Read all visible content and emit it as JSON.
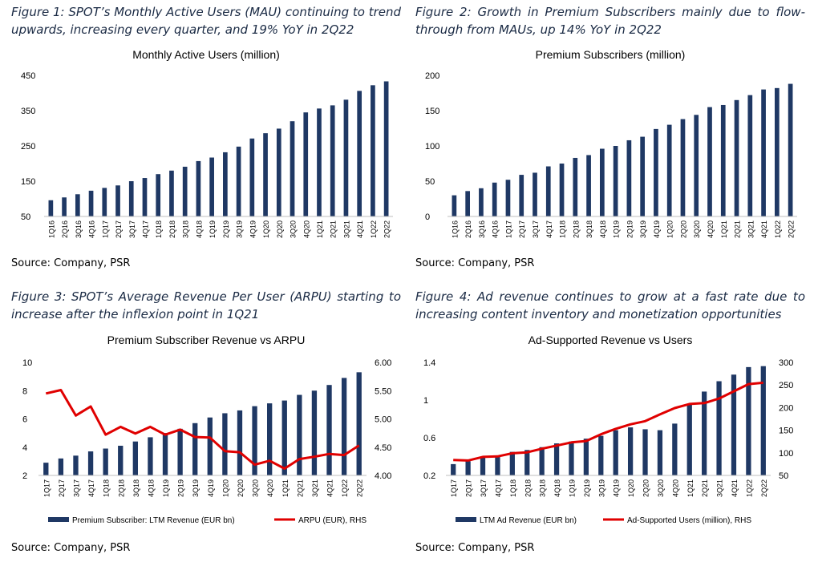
{
  "figures": [
    {
      "caption": "Figure 1: SPOT’s Monthly Active Users (MAU) continuing to trend upwards, increasing every quarter, and 19% YoY in 2Q22",
      "source": "Source: Company, PSR"
    },
    {
      "caption": "Figure 2: Growth in Premium Subscribers mainly due to flow-through from MAUs, up 14% YoY in 2Q22",
      "source": "Source: Company, PSR"
    },
    {
      "caption": "Figure 3: SPOT’s Average Revenue Per User (ARPU) starting to increase after the inflexion point in 1Q21",
      "source": "Source: Company, PSR"
    },
    {
      "caption": "Figure 4: Ad revenue continues to grow at a fast rate due to increasing content inventory and monetization opportunities",
      "source": "Source: Company, PSR"
    }
  ],
  "colors": {
    "bar": "#1f3864",
    "line": "#e00000",
    "caption": "#1a2a44"
  },
  "chart_data": [
    {
      "type": "bar",
      "title": "Monthly Active Users (million)",
      "categories": [
        "1Q16",
        "2Q16",
        "3Q16",
        "4Q16",
        "1Q17",
        "2Q17",
        "3Q17",
        "4Q17",
        "1Q18",
        "2Q18",
        "3Q18",
        "4Q18",
        "1Q19",
        "2Q19",
        "3Q19",
        "4Q19",
        "1Q20",
        "2Q20",
        "3Q20",
        "4Q20",
        "1Q21",
        "2Q21",
        "3Q21",
        "4Q21",
        "1Q22",
        "2Q22"
      ],
      "values": [
        96,
        104,
        113,
        123,
        131,
        138,
        150,
        159,
        170,
        180,
        191,
        207,
        217,
        232,
        248,
        271,
        286,
        299,
        320,
        345,
        356,
        365,
        381,
        406,
        422,
        433
      ],
      "ylim": [
        50,
        450
      ],
      "yticks": [
        50,
        150,
        250,
        350,
        450
      ],
      "grid": false
    },
    {
      "type": "bar",
      "title": "Premium Subscribers (million)",
      "categories": [
        "1Q16",
        "2Q16",
        "3Q16",
        "4Q16",
        "1Q17",
        "2Q17",
        "3Q17",
        "4Q17",
        "1Q18",
        "2Q18",
        "3Q18",
        "4Q18",
        "1Q19",
        "2Q19",
        "3Q19",
        "4Q19",
        "1Q20",
        "2Q20",
        "3Q20",
        "4Q20",
        "1Q21",
        "2Q21",
        "3Q21",
        "4Q21",
        "1Q22",
        "2Q22"
      ],
      "values": [
        30,
        36,
        40,
        48,
        52,
        59,
        62,
        71,
        75,
        83,
        87,
        96,
        100,
        108,
        113,
        124,
        130,
        138,
        144,
        155,
        158,
        165,
        172,
        180,
        182,
        188
      ],
      "ylim": [
        0,
        200
      ],
      "yticks": [
        0,
        50,
        100,
        150,
        200
      ],
      "grid": false
    },
    {
      "type": "bar+line",
      "title": "Premium Subscriber Revenue vs ARPU",
      "categories": [
        "1Q17",
        "2Q17",
        "3Q17",
        "4Q17",
        "1Q18",
        "2Q18",
        "3Q18",
        "4Q18",
        "1Q19",
        "2Q19",
        "3Q19",
        "4Q19",
        "1Q20",
        "2Q20",
        "3Q20",
        "4Q20",
        "1Q21",
        "2Q21",
        "3Q21",
        "4Q21",
        "1Q22",
        "2Q22"
      ],
      "series": [
        {
          "name": "Premium Subscriber: LTM Revenue (EUR bn)",
          "kind": "bar",
          "axis": "left",
          "values": [
            2.9,
            3.2,
            3.4,
            3.7,
            3.9,
            4.1,
            4.4,
            4.7,
            5.0,
            5.3,
            5.7,
            6.1,
            6.4,
            6.6,
            6.9,
            7.1,
            7.3,
            7.7,
            8.0,
            8.4,
            8.9,
            9.3
          ]
        },
        {
          "name": "ARPU (EUR), RHS",
          "kind": "line",
          "axis": "right",
          "values": [
            5.45,
            5.51,
            5.06,
            5.22,
            4.72,
            4.86,
            4.74,
            4.86,
            4.72,
            4.81,
            4.68,
            4.67,
            4.43,
            4.41,
            4.19,
            4.26,
            4.12,
            4.29,
            4.33,
            4.38,
            4.36,
            4.53
          ]
        }
      ],
      "ylim_left": [
        2,
        10
      ],
      "yticks_left": [
        2,
        4,
        6,
        8,
        10
      ],
      "ylim_right": [
        4.0,
        6.0
      ],
      "yticks_right": [
        "4.00",
        "4.50",
        "5.00",
        "5.50",
        "6.00"
      ],
      "legend": "bottom",
      "grid": false
    },
    {
      "type": "bar+line",
      "title": "Ad-Supported Revenue vs Users",
      "categories": [
        "1Q17",
        "2Q17",
        "3Q17",
        "4Q17",
        "1Q18",
        "2Q18",
        "3Q18",
        "4Q18",
        "1Q19",
        "2Q19",
        "3Q19",
        "4Q19",
        "1Q20",
        "2Q20",
        "3Q20",
        "4Q20",
        "1Q21",
        "2Q21",
        "3Q21",
        "4Q21",
        "1Q22",
        "2Q22"
      ],
      "series": [
        {
          "name": "LTM Ad Revenue (EUR bn)",
          "kind": "bar",
          "axis": "left",
          "values": [
            0.32,
            0.35,
            0.39,
            0.41,
            0.45,
            0.47,
            0.5,
            0.54,
            0.56,
            0.59,
            0.62,
            0.68,
            0.71,
            0.69,
            0.68,
            0.75,
            0.96,
            1.09,
            1.2,
            1.27,
            1.35,
            1.36
          ]
        },
        {
          "name": "Ad-Supported Users (million), RHS",
          "kind": "line",
          "axis": "right",
          "values": [
            84,
            83,
            91,
            92,
            99,
            101,
            109,
            116,
            123,
            126,
            141,
            153,
            163,
            170,
            185,
            199,
            208,
            210,
            220,
            236,
            252,
            255
          ]
        }
      ],
      "ylim_left": [
        0.2,
        1.4
      ],
      "yticks_left": [
        "0.2",
        "0.6",
        "1",
        "1.4"
      ],
      "ylim_right": [
        50,
        300
      ],
      "yticks_right": [
        50,
        100,
        150,
        200,
        250,
        300
      ],
      "legend": "bottom",
      "grid": false
    }
  ]
}
